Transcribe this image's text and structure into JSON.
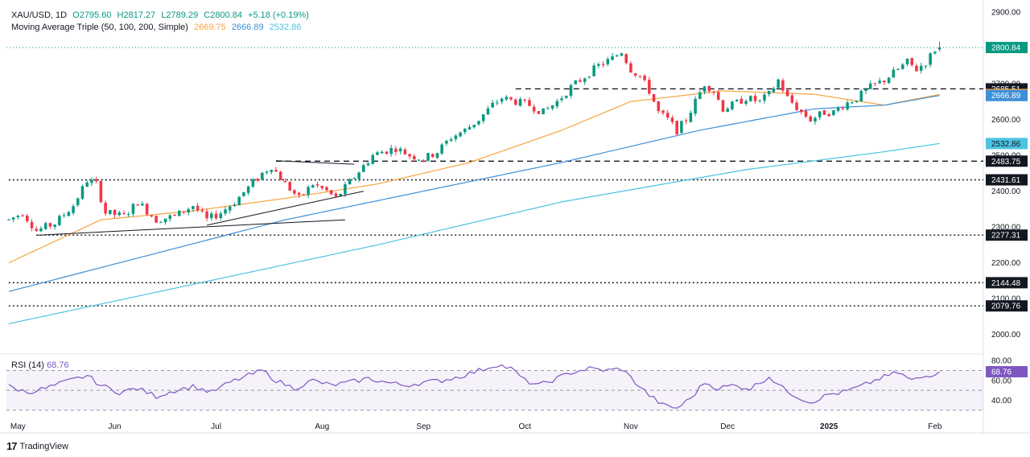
{
  "legend": {
    "symbol": "XAU/USD, 1D",
    "open": "O2795.60",
    "high": "H2817.27",
    "low": "L2789.29",
    "close": "C2800.84",
    "change": "+5.18 (+0.19%)",
    "ma_title": "Moving Average Triple (50, 100, 200, Simple)",
    "ma_values": [
      "2669.75",
      "2666.89",
      "2532.86"
    ],
    "rsi_title": "RSI (14)",
    "rsi_value": "68.76"
  },
  "colors": {
    "up": "#089981",
    "down": "#f23645",
    "ma50": "#f7a440",
    "ma100": "#3d8fd6",
    "ma200": "#4dc3e0",
    "rsi": "#7e57c2",
    "price_tag": "#089981"
  },
  "brand": {
    "icon": "tradingview-logo-icon",
    "name": "TradingView"
  },
  "chart_data": {
    "type": "candlestick",
    "symbol": "XAU/USD",
    "interval": "1D",
    "ylim": [
      1950,
      2920
    ],
    "yticks": [
      2000,
      2100,
      2200,
      2300,
      2400,
      2500,
      2600,
      2700,
      2800,
      2900
    ],
    "xlabels": [
      "May",
      "Jun",
      "Jul",
      "Aug",
      "Sep",
      "Oct",
      "Nov",
      "Dec",
      "2025",
      "Feb"
    ],
    "xlabel_index": [
      2,
      23,
      45,
      68,
      90,
      112,
      135,
      156,
      178,
      201
    ],
    "num_days": 212,
    "candle_keypoints": [
      [
        0,
        2320
      ],
      [
        3,
        2340
      ],
      [
        6,
        2290
      ],
      [
        10,
        2310
      ],
      [
        14,
        2360
      ],
      [
        17,
        2430
      ],
      [
        19,
        2420
      ],
      [
        21,
        2340
      ],
      [
        25,
        2330
      ],
      [
        28,
        2370
      ],
      [
        32,
        2320
      ],
      [
        36,
        2330
      ],
      [
        40,
        2360
      ],
      [
        43,
        2320
      ],
      [
        46,
        2340
      ],
      [
        49,
        2370
      ],
      [
        52,
        2410
      ],
      [
        55,
        2450
      ],
      [
        57,
        2470
      ],
      [
        60,
        2420
      ],
      [
        63,
        2380
      ],
      [
        66,
        2420
      ],
      [
        69,
        2400
      ],
      [
        71,
        2380
      ],
      [
        73,
        2410
      ],
      [
        75,
        2440
      ],
      [
        77,
        2470
      ],
      [
        79,
        2500
      ],
      [
        81,
        2510
      ],
      [
        84,
        2520
      ],
      [
        87,
        2500
      ],
      [
        90,
        2490
      ],
      [
        93,
        2510
      ],
      [
        96,
        2550
      ],
      [
        99,
        2570
      ],
      [
        102,
        2600
      ],
      [
        105,
        2640
      ],
      [
        107,
        2660
      ],
      [
        110,
        2650
      ],
      [
        113,
        2640
      ],
      [
        116,
        2620
      ],
      [
        119,
        2650
      ],
      [
        122,
        2690
      ],
      [
        125,
        2720
      ],
      [
        128,
        2750
      ],
      [
        131,
        2770
      ],
      [
        133,
        2790
      ],
      [
        135,
        2740
      ],
      [
        137,
        2720
      ],
      [
        139,
        2680
      ],
      [
        141,
        2620
      ],
      [
        143,
        2600
      ],
      [
        145,
        2570
      ],
      [
        147,
        2600
      ],
      [
        149,
        2650
      ],
      [
        151,
        2700
      ],
      [
        153,
        2680
      ],
      [
        155,
        2630
      ],
      [
        157,
        2640
      ],
      [
        160,
        2660
      ],
      [
        163,
        2650
      ],
      [
        165,
        2670
      ],
      [
        167,
        2710
      ],
      [
        169,
        2660
      ],
      [
        172,
        2620
      ],
      [
        174,
        2600
      ],
      [
        177,
        2620
      ],
      [
        179,
        2620
      ],
      [
        181,
        2640
      ],
      [
        184,
        2660
      ],
      [
        187,
        2690
      ],
      [
        190,
        2710
      ],
      [
        193,
        2740
      ],
      [
        195,
        2760
      ],
      [
        197,
        2740
      ],
      [
        199,
        2760
      ],
      [
        201,
        2795
      ],
      [
        202,
        2800.84
      ]
    ],
    "ma50_keypoints": [
      [
        0,
        2200
      ],
      [
        20,
        2320
      ],
      [
        40,
        2345
      ],
      [
        60,
        2380
      ],
      [
        80,
        2420
      ],
      [
        100,
        2480
      ],
      [
        120,
        2570
      ],
      [
        135,
        2650
      ],
      [
        155,
        2680
      ],
      [
        175,
        2670
      ],
      [
        190,
        2640
      ],
      [
        202,
        2670
      ]
    ],
    "ma100_keypoints": [
      [
        0,
        2120
      ],
      [
        30,
        2220
      ],
      [
        60,
        2320
      ],
      [
        90,
        2400
      ],
      [
        120,
        2480
      ],
      [
        150,
        2570
      ],
      [
        175,
        2630
      ],
      [
        190,
        2640
      ],
      [
        202,
        2667
      ]
    ],
    "ma200_keypoints": [
      [
        0,
        2030
      ],
      [
        40,
        2140
      ],
      [
        80,
        2250
      ],
      [
        120,
        2370
      ],
      [
        160,
        2460
      ],
      [
        190,
        2510
      ],
      [
        202,
        2533
      ]
    ],
    "rsi_ylim": [
      25,
      85
    ],
    "rsi_levels": [
      30,
      50,
      70
    ],
    "rsi_ticks": [
      40,
      60,
      80
    ],
    "rsi_keypoints": [
      [
        0,
        54
      ],
      [
        4,
        48
      ],
      [
        8,
        52
      ],
      [
        12,
        58
      ],
      [
        17,
        65
      ],
      [
        20,
        55
      ],
      [
        24,
        48
      ],
      [
        28,
        52
      ],
      [
        32,
        44
      ],
      [
        36,
        50
      ],
      [
        40,
        54
      ],
      [
        44,
        48
      ],
      [
        48,
        58
      ],
      [
        52,
        65
      ],
      [
        55,
        70
      ],
      [
        58,
        60
      ],
      [
        62,
        52
      ],
      [
        66,
        60
      ],
      [
        70,
        55
      ],
      [
        74,
        58
      ],
      [
        78,
        62
      ],
      [
        82,
        58
      ],
      [
        86,
        55
      ],
      [
        90,
        58
      ],
      [
        94,
        60
      ],
      [
        98,
        64
      ],
      [
        102,
        70
      ],
      [
        106,
        76
      ],
      [
        109,
        72
      ],
      [
        112,
        60
      ],
      [
        115,
        55
      ],
      [
        119,
        62
      ],
      [
        122,
        68
      ],
      [
        126,
        72
      ],
      [
        130,
        70
      ],
      [
        133,
        72
      ],
      [
        136,
        58
      ],
      [
        139,
        45
      ],
      [
        142,
        35
      ],
      [
        145,
        32
      ],
      [
        148,
        42
      ],
      [
        151,
        58
      ],
      [
        154,
        52
      ],
      [
        157,
        55
      ],
      [
        161,
        52
      ],
      [
        165,
        64
      ],
      [
        168,
        52
      ],
      [
        171,
        44
      ],
      [
        174,
        38
      ],
      [
        178,
        46
      ],
      [
        181,
        48
      ],
      [
        185,
        54
      ],
      [
        189,
        62
      ],
      [
        193,
        68
      ],
      [
        196,
        60
      ],
      [
        199,
        64
      ],
      [
        202,
        68.76
      ]
    ],
    "price_tags": [
      {
        "value": 2900,
        "label": "2900.00",
        "kind": "tick"
      },
      {
        "value": 2800.84,
        "label": "2800.84",
        "kind": "last"
      },
      {
        "value": 2685.51,
        "label": "2685.51",
        "kind": "level"
      },
      {
        "value": 2669.75,
        "label": "2669.75",
        "kind": "ma50"
      },
      {
        "value": 2666.89,
        "label": "2666.89",
        "kind": "ma100"
      },
      {
        "value": 2532.86,
        "label": "2532.86",
        "kind": "ma200"
      },
      {
        "value": 2483.75,
        "label": "2483.75",
        "kind": "level"
      },
      {
        "value": 2431.61,
        "label": "2431.61",
        "kind": "level"
      },
      {
        "value": 2277.31,
        "label": "2277.31",
        "kind": "level"
      },
      {
        "value": 2144.48,
        "label": "2144.48",
        "kind": "level"
      },
      {
        "value": 2079.76,
        "label": "2079.76",
        "kind": "level"
      }
    ],
    "horizontal_levels": [
      {
        "value": 2685.51,
        "style": "dashed",
        "from": 110,
        "to": 212
      },
      {
        "value": 2483.75,
        "style": "dashed",
        "from": 58,
        "to": 212
      },
      {
        "value": 2431.61,
        "style": "dotted",
        "from": 0,
        "to": 212
      },
      {
        "value": 2277.31,
        "style": "dotted",
        "from": 6,
        "to": 212
      },
      {
        "value": 2144.48,
        "style": "dotted",
        "from": 0,
        "to": 212
      },
      {
        "value": 2079.76,
        "style": "dotted",
        "from": 0,
        "to": 212
      }
    ],
    "trendlines": [
      {
        "x1": 6,
        "y1": 2277,
        "x2": 73,
        "y2": 2320
      },
      {
        "x1": 43,
        "y1": 2305,
        "x2": 77,
        "y2": 2400
      },
      {
        "x1": 58,
        "y1": 2485,
        "x2": 75,
        "y2": 2475
      }
    ]
  }
}
